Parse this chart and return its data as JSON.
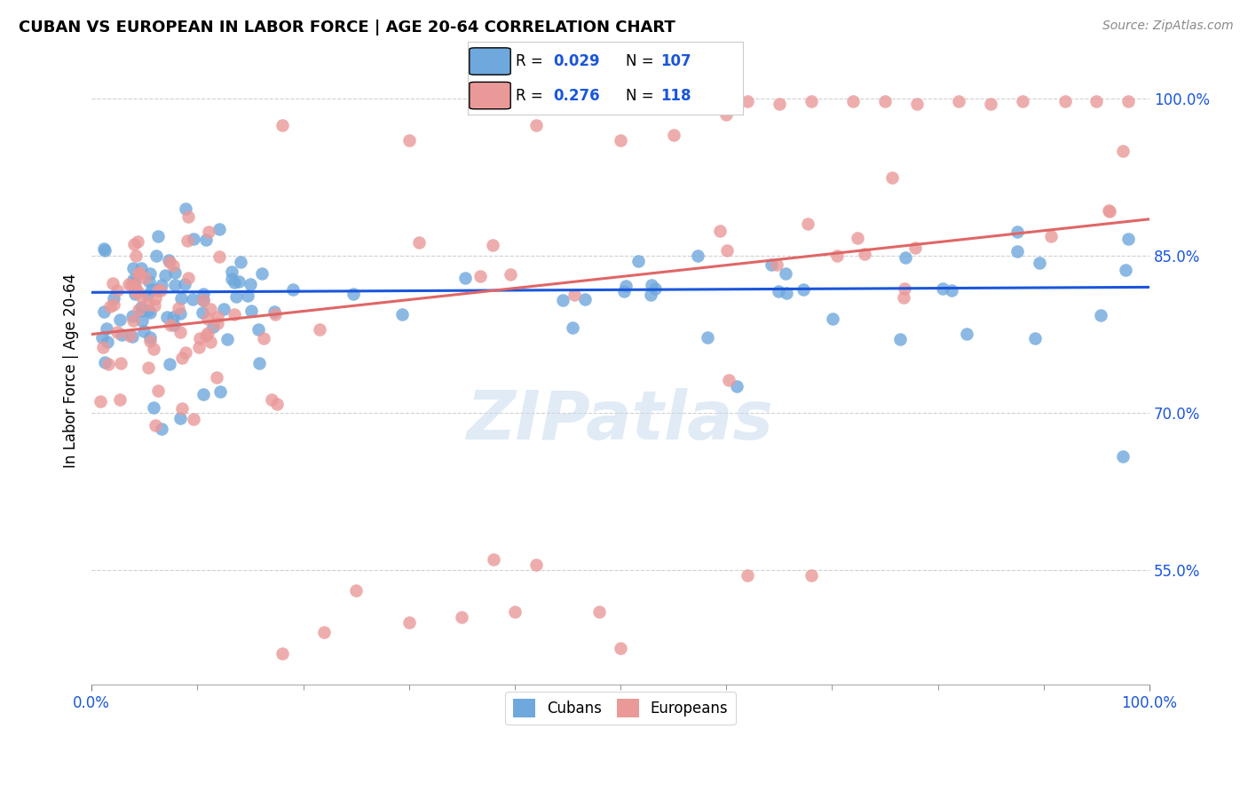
{
  "title": "CUBAN VS EUROPEAN IN LABOR FORCE | AGE 20-64 CORRELATION CHART",
  "source_text": "Source: ZipAtlas.com",
  "ylabel": "In Labor Force | Age 20-64",
  "xlim": [
    0.0,
    1.0
  ],
  "ylim": [
    0.44,
    1.04
  ],
  "yticks": [
    0.55,
    0.7,
    0.85,
    1.0
  ],
  "ytick_labels": [
    "55.0%",
    "70.0%",
    "85.0%",
    "100.0%"
  ],
  "xtick_labels": [
    "0.0%",
    "100.0%"
  ],
  "xticks": [
    0.0,
    1.0
  ],
  "blue_color": "#6fa8dc",
  "pink_color": "#ea9999",
  "blue_line_color": "#1a56db",
  "pink_line_color": "#e06666",
  "R_blue": 0.029,
  "N_blue": 107,
  "R_pink": 0.276,
  "N_pink": 118,
  "watermark": "ZIPatlas",
  "blue_trend": [
    0.0,
    0.815,
    1.0,
    0.82
  ],
  "pink_trend": [
    0.0,
    0.775,
    1.0,
    0.885
  ]
}
